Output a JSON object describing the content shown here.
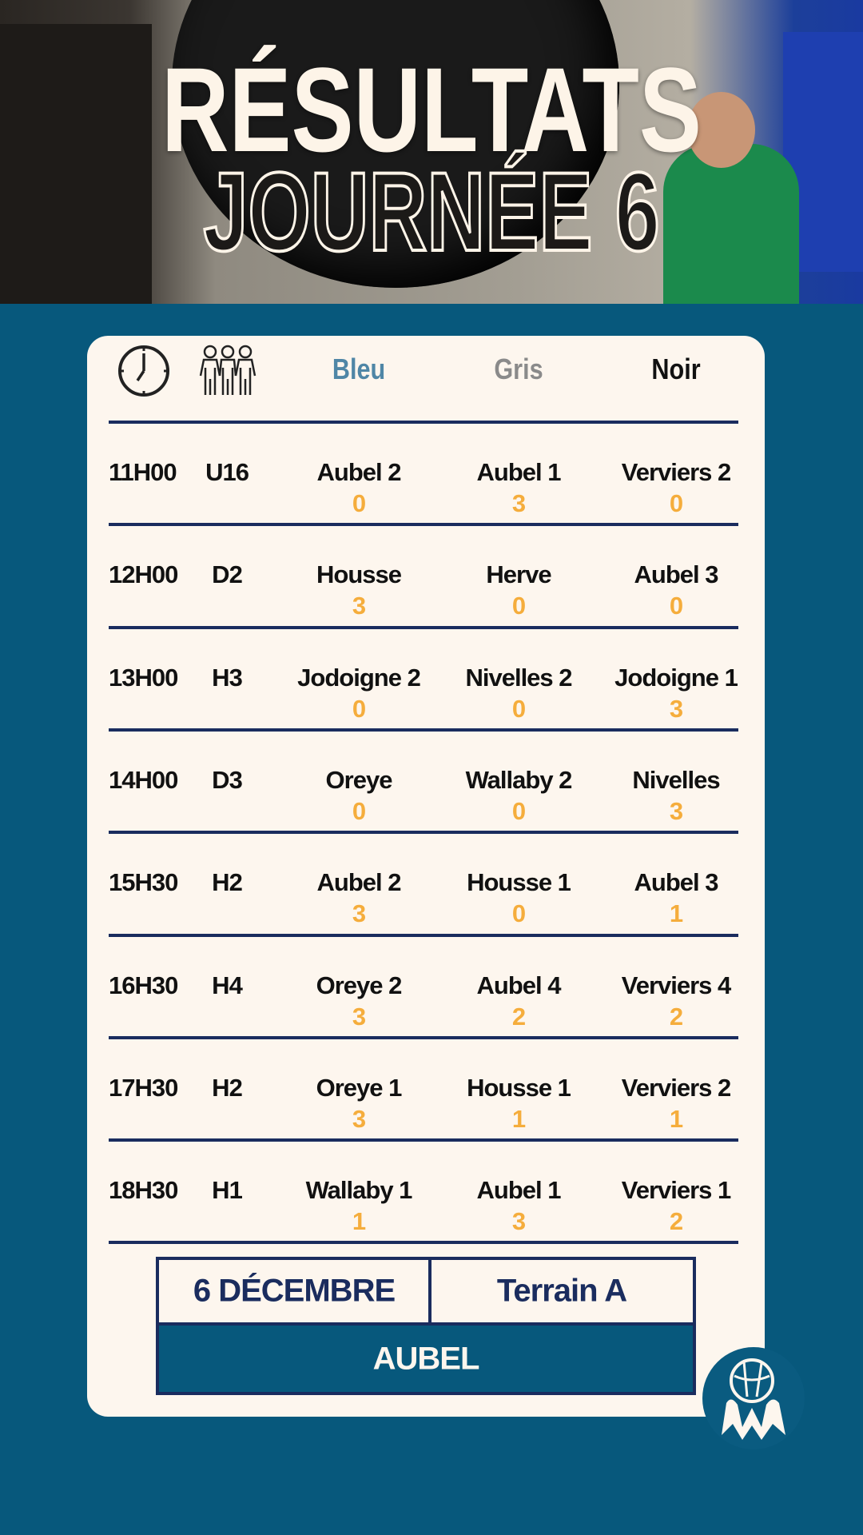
{
  "header": {
    "title_line1": "RÉSULTATS",
    "title_line2": "JOURNÉE 6"
  },
  "table": {
    "columns": {
      "time_icon": "clock-icon",
      "category_icon": "team-icon",
      "bleu": "Bleu",
      "gris": "Gris",
      "noir": "Noir"
    },
    "column_colors": {
      "bleu": "#4f86a6",
      "gris": "#8a8a8a",
      "noir": "#111111"
    },
    "score_color": "#f5ad3c",
    "rows": [
      {
        "time": "11H00",
        "cat": "U16",
        "bleu": "Aubel 2",
        "bleu_score": "0",
        "gris": "Aubel 1",
        "gris_score": "3",
        "noir": "Verviers 2",
        "noir_score": "0"
      },
      {
        "time": "12H00",
        "cat": "D2",
        "bleu": "Housse",
        "bleu_score": "3",
        "gris": "Herve",
        "gris_score": "0",
        "noir": "Aubel 3",
        "noir_score": "0"
      },
      {
        "time": "13H00",
        "cat": "H3",
        "bleu": "Jodoigne 2",
        "bleu_score": "0",
        "gris": "Nivelles 2",
        "gris_score": "0",
        "noir": "Jodoigne 1",
        "noir_score": "3"
      },
      {
        "time": "14H00",
        "cat": "D3",
        "bleu": "Oreye",
        "bleu_score": "0",
        "gris": "Wallaby 2",
        "gris_score": "0",
        "noir": "Nivelles",
        "noir_score": "3"
      },
      {
        "time": "15H30",
        "cat": "H2",
        "bleu": "Aubel 2",
        "bleu_score": "3",
        "gris": "Housse 1",
        "gris_score": "0",
        "noir": "Aubel 3",
        "noir_score": "1"
      },
      {
        "time": "16H30",
        "cat": "H4",
        "bleu": "Oreye 2",
        "bleu_score": "3",
        "gris": "Aubel 4",
        "gris_score": "2",
        "noir": "Verviers 4",
        "noir_score": "2"
      },
      {
        "time": "17H30",
        "cat": "H2",
        "bleu": "Oreye 1",
        "bleu_score": "3",
        "gris": "Housse 1",
        "gris_score": "1",
        "noir": "Verviers 2",
        "noir_score": "1"
      },
      {
        "time": "18H30",
        "cat": "H1",
        "bleu": "Wallaby 1",
        "bleu_score": "1",
        "gris": "Aubel 1",
        "gris_score": "3",
        "noir": "Verviers 1",
        "noir_score": "2"
      }
    ]
  },
  "footer": {
    "date": "6 DÉCEMBRE",
    "field": "Terrain A",
    "venue": "AUBEL",
    "logo_icon": "kinball-club-logo-icon"
  }
}
